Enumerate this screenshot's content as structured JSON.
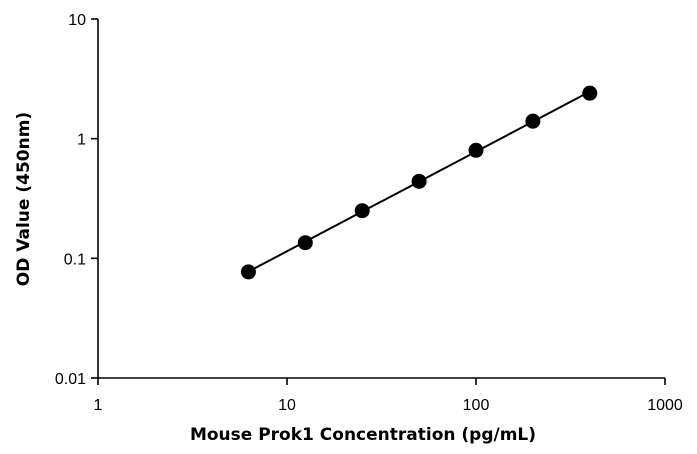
{
  "chart_data": {
    "type": "scatter",
    "title": "",
    "xlabel": "Mouse Prok1 Concentration (pg/mL)",
    "ylabel": "OD Value (450nm)",
    "xscale": "log",
    "yscale": "log",
    "xlim": [
      1,
      1000
    ],
    "ylim": [
      0.01,
      10
    ],
    "x_ticks": [
      "1",
      "10",
      "100",
      "1000"
    ],
    "y_ticks": [
      "0.01",
      "0.1",
      "1",
      "10"
    ],
    "grid": false,
    "legend": "none",
    "trendline": "log-log linear fit",
    "series": [
      {
        "x": [
          6.25,
          12.5,
          25,
          50,
          100,
          200,
          400
        ],
        "y": [
          0.077,
          0.135,
          0.25,
          0.44,
          0.8,
          1.4,
          2.4
        ]
      }
    ],
    "colors": {
      "marker": "#000000",
      "line": "#000000",
      "axis": "#000000"
    }
  }
}
